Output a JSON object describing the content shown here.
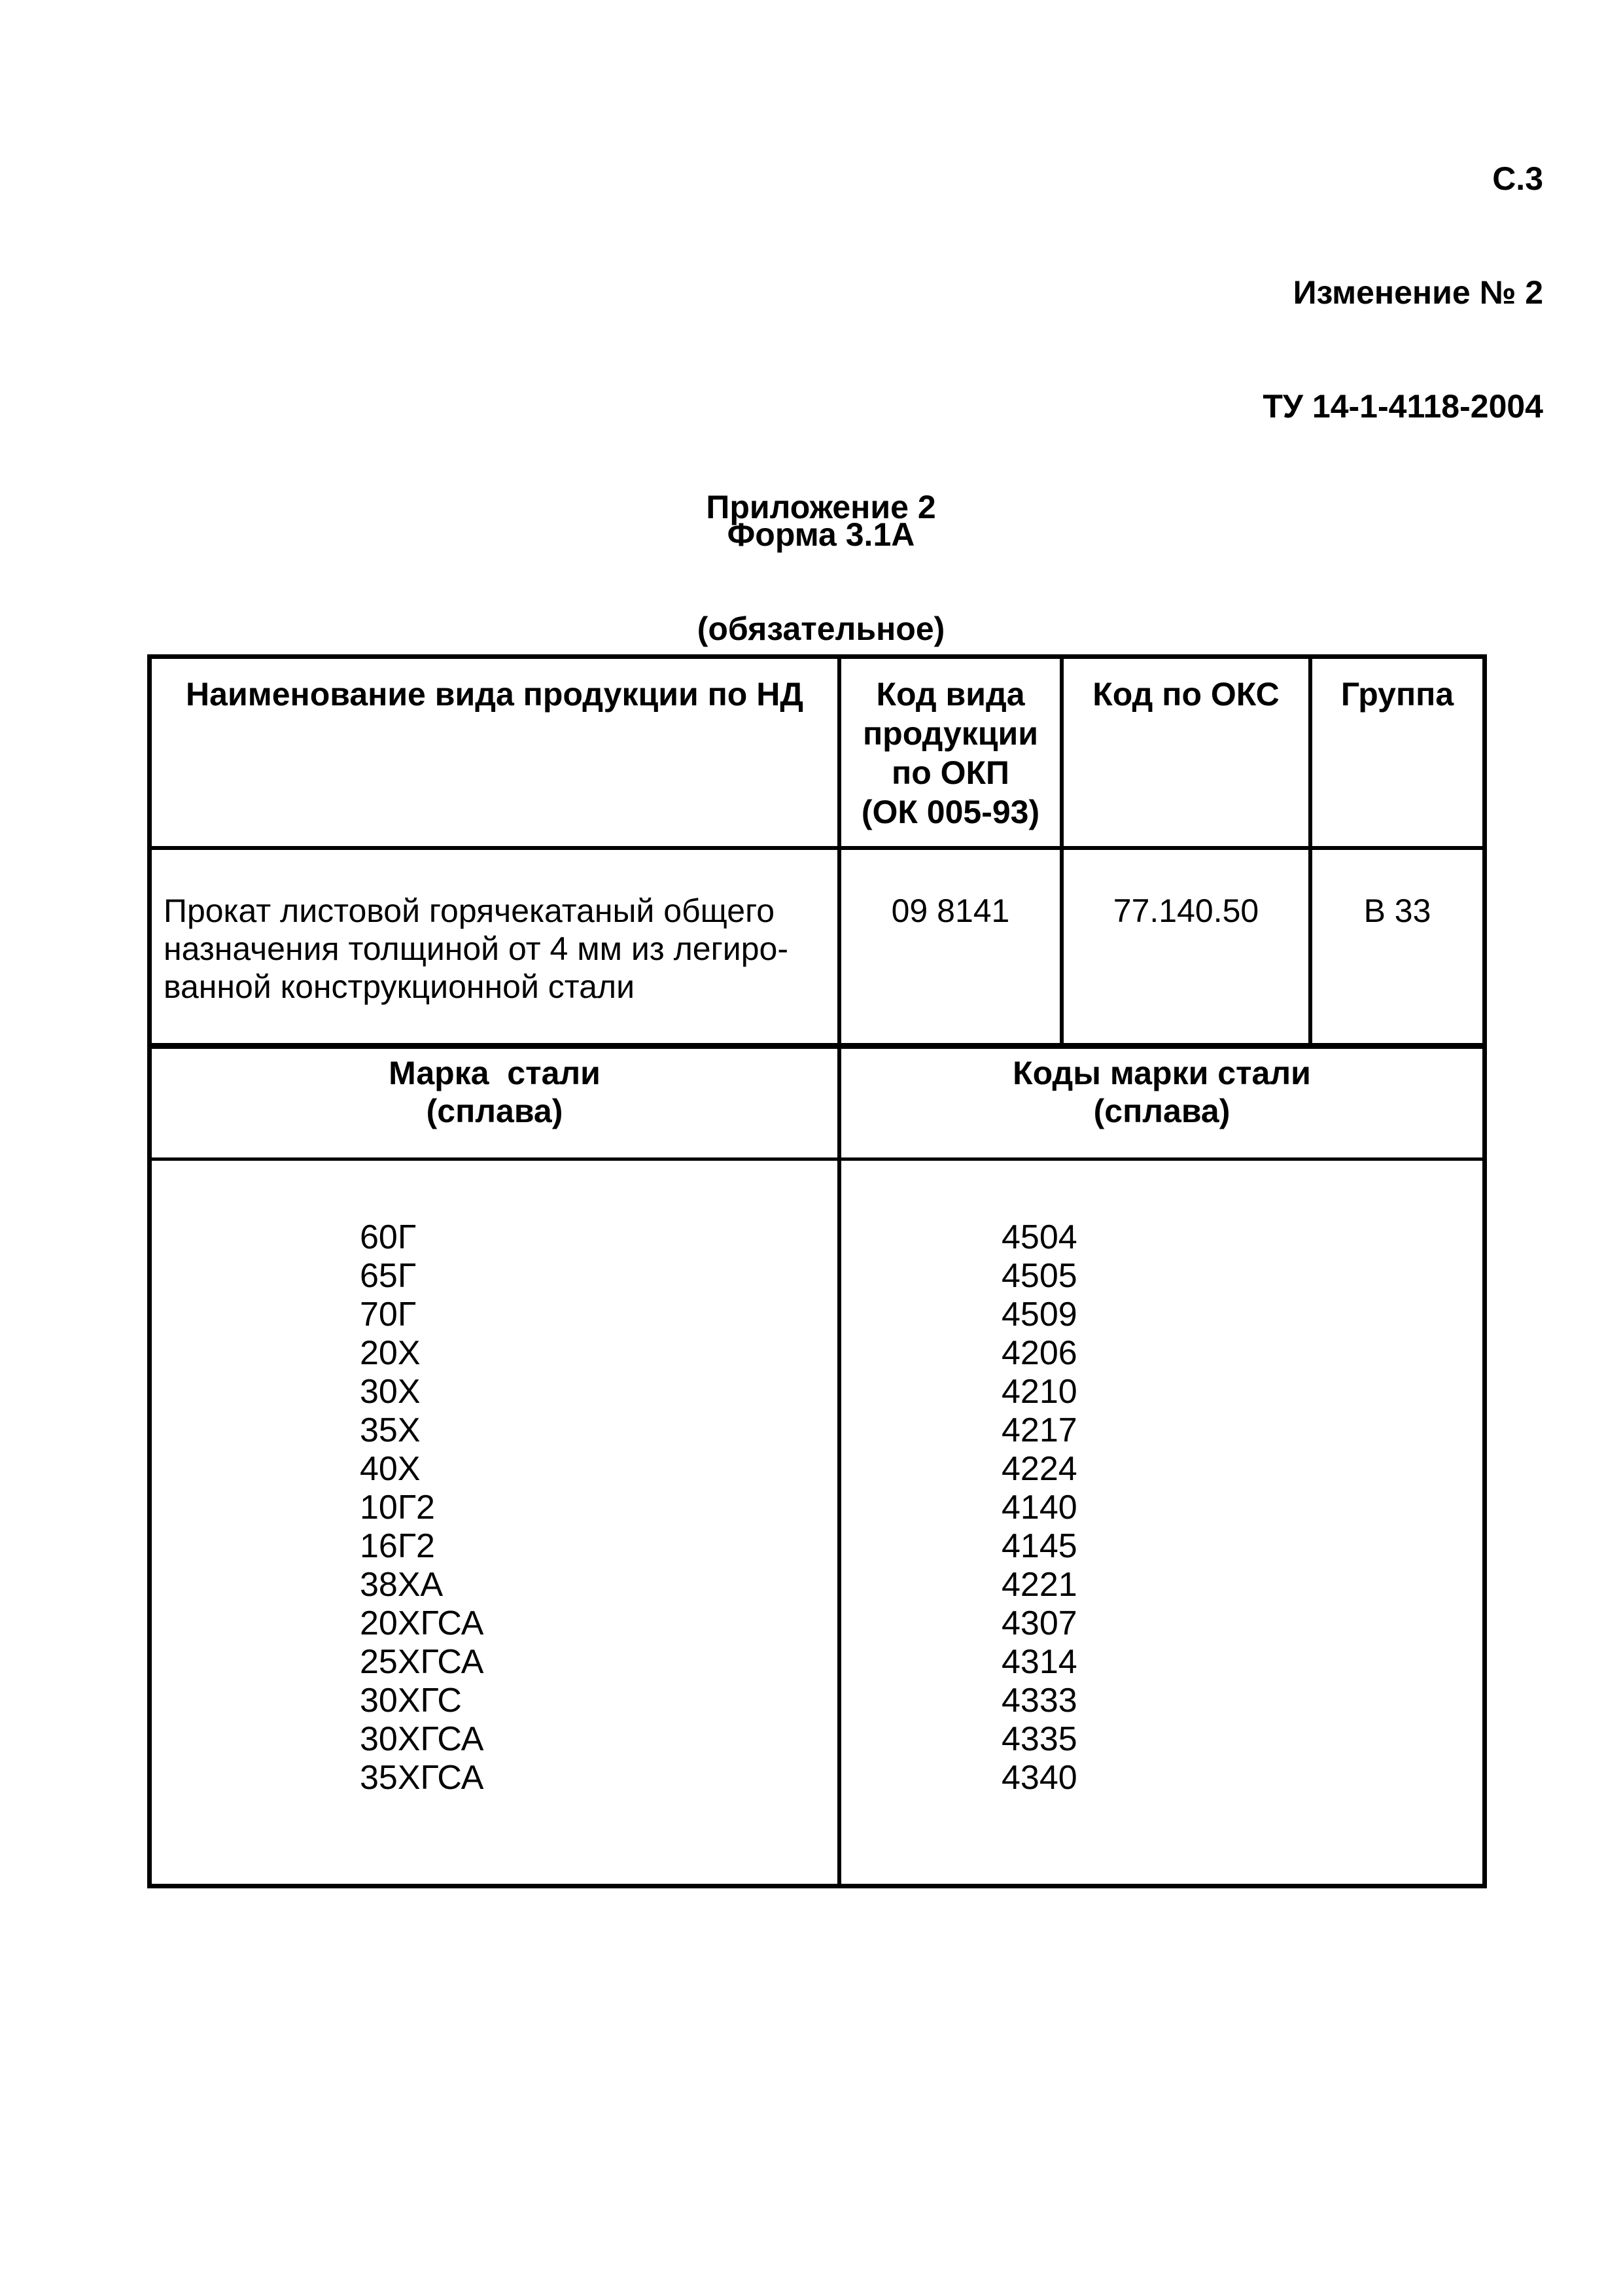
{
  "page_header": {
    "page": "С.3",
    "amendment": "Изменение № 2",
    "standard": "ТУ 14-1-4118-2004"
  },
  "titles": {
    "appendix": "Приложение 2",
    "mandatory": "(обязательное)",
    "form": "Форма 3.1А"
  },
  "product_table": {
    "headers": {
      "name": "Наименование вида продукции по НД",
      "okp": "Код вида\nпродукции\nпо ОКП\n(ОК 005-93)",
      "oks": "Код по ОКС",
      "group": "Группа"
    },
    "row": {
      "name": "Прокат листовой горячекатаный общего\nназначения толщиной от 4 мм из легиро-\nванной конструкционной стали",
      "okp": "09 8141",
      "oks": "77.140.50",
      "group": "В 33"
    }
  },
  "grades_table": {
    "headers": {
      "grade": "Марка  стали\n(сплава)",
      "codes": "Коды марки стали\n(сплава)"
    },
    "rows": [
      {
        "grade": "60Г",
        "code": "4504"
      },
      {
        "grade": "65Г",
        "code": "4505"
      },
      {
        "grade": "70Г",
        "code": "4509"
      },
      {
        "grade": "20Х",
        "code": "4206"
      },
      {
        "grade": "30Х",
        "code": "4210"
      },
      {
        "grade": "35Х",
        "code": "4217"
      },
      {
        "grade": "40Х",
        "code": "4224"
      },
      {
        "grade": "10Г2",
        "code": "4140"
      },
      {
        "grade": "16Г2",
        "code": "4145"
      },
      {
        "grade": "38ХА",
        "code": "4221"
      },
      {
        "grade": "20ХГСА",
        "code": "4307"
      },
      {
        "grade": "25ХГСА",
        "code": "4314"
      },
      {
        "grade": "30ХГС",
        "code": "4333"
      },
      {
        "grade": "30ХГСА",
        "code": "4335"
      },
      {
        "grade": "35ХГСА",
        "code": "4340"
      }
    ]
  },
  "colors": {
    "ink": "#000000",
    "paper": "#ffffff"
  }
}
